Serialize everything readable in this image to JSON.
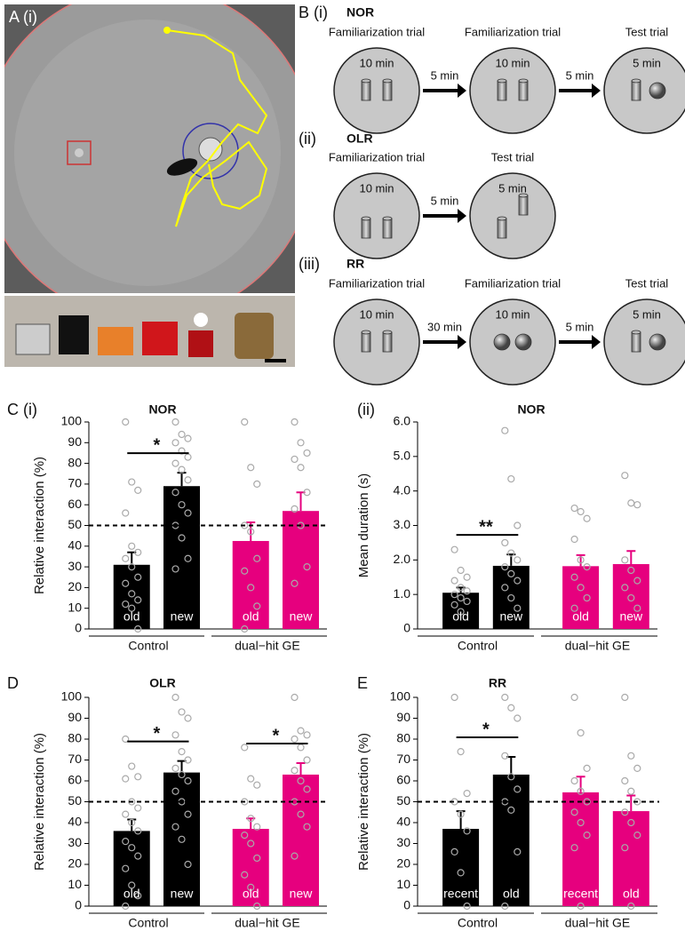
{
  "panel_a": {
    "label": "A (i)"
  },
  "diagram": {
    "rows": [
      {
        "label": "B (i)",
        "name": "NOR",
        "trials": [
          {
            "label": "Familiarization trial",
            "duration": "10 min"
          },
          {
            "label": "Familiarization trial",
            "duration": "10 min"
          },
          {
            "label": "Test trial",
            "duration": "5 min"
          }
        ],
        "intervals": [
          "5 min",
          "5 min"
        ]
      },
      {
        "label": "(ii)",
        "name": "OLR",
        "trials": [
          {
            "label": "Familiarization trial",
            "duration": "10 min"
          },
          {
            "label": "Test trial",
            "duration": "5 min"
          }
        ],
        "intervals": [
          "5 min"
        ]
      },
      {
        "label": "(iii)",
        "name": "RR",
        "trials": [
          {
            "label": "Familiarization trial",
            "duration": "10 min"
          },
          {
            "label": "Familiarization trial",
            "duration": "10 min"
          },
          {
            "label": "Test trial",
            "duration": "5 min"
          }
        ],
        "intervals": [
          "30 min",
          "5 min"
        ]
      }
    ]
  },
  "chart_data": [
    {
      "type": "bar",
      "panel": "C (i)",
      "title": "NOR",
      "ylabel": "Relative interaction (%)",
      "groups": [
        "Control",
        "dual−hit GE"
      ],
      "categories": [
        "old",
        "new",
        "old",
        "new"
      ],
      "values": [
        31,
        69,
        42.5,
        57
      ],
      "errors": [
        6,
        6.5,
        9,
        9
      ],
      "colors": [
        "#000000",
        "#000000",
        "#e6007e",
        "#e6007e"
      ],
      "points": [
        [
          100,
          71,
          67,
          56,
          40,
          37,
          34,
          30,
          25,
          22,
          17,
          14,
          12,
          10,
          0
        ],
        [
          100,
          94,
          92,
          90,
          86,
          83,
          80,
          77,
          72,
          66,
          60,
          56,
          50,
          44,
          34,
          29
        ],
        [
          100,
          78,
          70,
          50,
          47,
          34,
          28,
          20,
          11,
          0
        ],
        [
          100,
          90,
          85,
          82,
          78,
          66,
          58,
          50,
          30,
          22
        ]
      ],
      "ylim": [
        0,
        100
      ],
      "yticks": [
        0,
        10,
        20,
        30,
        40,
        50,
        60,
        70,
        80,
        90,
        100
      ],
      "reference_line": 50,
      "annotations": [
        "*"
      ]
    },
    {
      "type": "bar",
      "panel": "(ii)",
      "title": "NOR",
      "ylabel": "Mean duration (s)",
      "groups": [
        "Control",
        "dual−hit GE"
      ],
      "categories": [
        "old",
        "new",
        "old",
        "new"
      ],
      "values": [
        1.05,
        1.83,
        1.82,
        1.88
      ],
      "errors": [
        0.15,
        0.33,
        0.32,
        0.38
      ],
      "colors": [
        "#000000",
        "#000000",
        "#e6007e",
        "#e6007e"
      ],
      "points": [
        [
          2.3,
          1.7,
          1.5,
          1.4,
          1.2,
          1.1,
          1.0,
          0.9,
          0.8,
          0.7,
          0.5
        ],
        [
          5.75,
          4.35,
          3.0,
          2.5,
          2.2,
          2.0,
          1.8,
          1.6,
          1.4,
          1.2,
          0.9,
          0.6
        ],
        [
          3.5,
          3.4,
          3.2,
          2.6,
          2.0,
          1.8,
          1.5,
          1.2,
          0.9,
          0.6
        ],
        [
          4.45,
          3.65,
          3.6,
          2.0,
          1.7,
          1.4,
          1.2,
          0.9,
          0.6
        ]
      ],
      "ylim": [
        0,
        6
      ],
      "yticks": [
        0,
        {
          "value": 1,
          "label": "1.0"
        },
        {
          "value": 2,
          "label": "2.0"
        },
        {
          "value": 3,
          "label": "3.0"
        },
        {
          "value": 4,
          "label": "4.0"
        },
        {
          "value": 5,
          "label": "5.0"
        },
        {
          "value": 6,
          "label": "6.0"
        }
      ],
      "annotations": [
        "**"
      ]
    },
    {
      "type": "bar",
      "panel": "D",
      "title": "OLR",
      "ylabel": "Relative interaction (%)",
      "groups": [
        "Control",
        "dual−hit GE"
      ],
      "categories": [
        "old",
        "new",
        "old",
        "new"
      ],
      "values": [
        36,
        64,
        37,
        63
      ],
      "errors": [
        5.5,
        5.5,
        5,
        5.5
      ],
      "colors": [
        "#000000",
        "#000000",
        "#e6007e",
        "#e6007e"
      ],
      "points": [
        [
          80,
          67,
          62,
          61,
          50,
          47,
          44,
          40,
          36,
          31,
          28,
          24,
          18,
          10,
          5,
          0
        ],
        [
          100,
          93,
          90,
          82,
          74,
          70,
          66,
          63,
          60,
          55,
          50,
          44,
          38,
          32,
          20
        ],
        [
          76,
          61,
          58,
          50,
          42,
          38,
          34,
          30,
          23,
          15,
          9,
          0
        ],
        [
          100,
          84,
          82,
          80,
          76,
          70,
          65,
          60,
          56,
          50,
          44,
          38,
          24
        ]
      ],
      "ylim": [
        0,
        100
      ],
      "yticks": [
        0,
        10,
        20,
        30,
        40,
        50,
        60,
        70,
        80,
        90,
        100
      ],
      "reference_line": 50,
      "annotations": [
        "*",
        "*"
      ]
    },
    {
      "type": "bar",
      "panel": "E",
      "title": "RR",
      "ylabel": "Relative interaction (%)",
      "groups": [
        "Control",
        "dual−hit GE"
      ],
      "categories": [
        "recent",
        "old",
        "recent",
        "old"
      ],
      "values": [
        37,
        63,
        54.5,
        45.5
      ],
      "errors": [
        8.5,
        8.5,
        7.5,
        7.5
      ],
      "colors": [
        "#000000",
        "#000000",
        "#e6007e",
        "#e6007e"
      ],
      "points": [
        [
          100,
          74,
          54,
          50,
          44,
          36,
          26,
          16,
          0
        ],
        [
          100,
          95,
          90,
          72,
          62,
          56,
          50,
          46,
          26,
          0
        ],
        [
          100,
          83,
          66,
          60,
          55,
          50,
          45,
          40,
          34,
          28,
          0
        ],
        [
          100,
          72,
          66,
          60,
          55,
          50,
          45,
          40,
          34,
          28,
          0
        ]
      ],
      "ylim": [
        0,
        100
      ],
      "yticks": [
        0,
        10,
        20,
        30,
        40,
        50,
        60,
        70,
        80,
        90,
        100
      ],
      "reference_line": 50,
      "annotations": [
        "*"
      ]
    }
  ]
}
